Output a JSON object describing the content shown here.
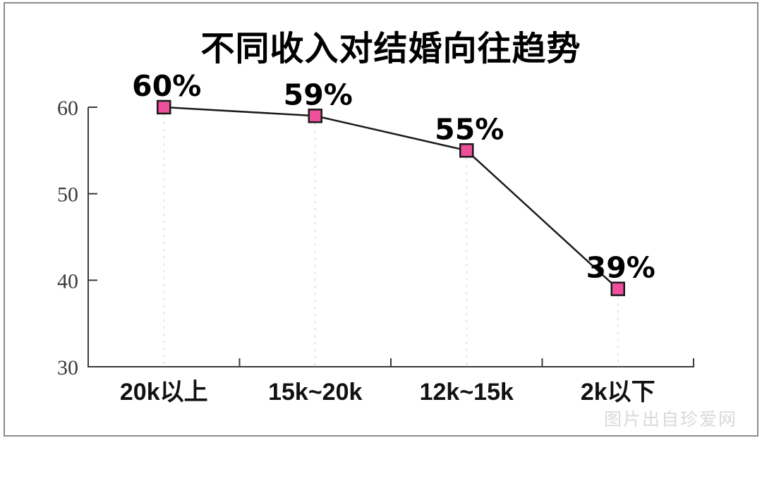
{
  "page": {
    "background": "#ffffff"
  },
  "panel": {
    "background": "#ffffff",
    "border_color": "#8c8c8c"
  },
  "watermark": "图片出自珍爱网",
  "chart_data": {
    "type": "line",
    "title": "不同收入对结婚向往趋势",
    "categories": [
      "20k以上",
      "15k~20k",
      "12k~15k",
      "2k以下"
    ],
    "values": [
      60,
      59,
      55,
      39
    ],
    "data_labels": [
      "60%",
      "59%",
      "55%",
      "39%"
    ],
    "xlabel": "",
    "ylabel": "",
    "ylim": [
      30,
      60
    ],
    "yticks": [
      60,
      50,
      40,
      30
    ],
    "legend": "none",
    "grid": "dashed-droplines-from-points",
    "marker": "square",
    "colors": {
      "line": "#1a1a1a",
      "marker_fill": "#ee4f9b",
      "marker_border": "#1a1a1a",
      "axis": "#3a3a3a",
      "dropline": "#e2e2e2",
      "data_label": "#000000",
      "tick_label": "#3a3a3a",
      "watermark": "#d9d9d9"
    }
  }
}
